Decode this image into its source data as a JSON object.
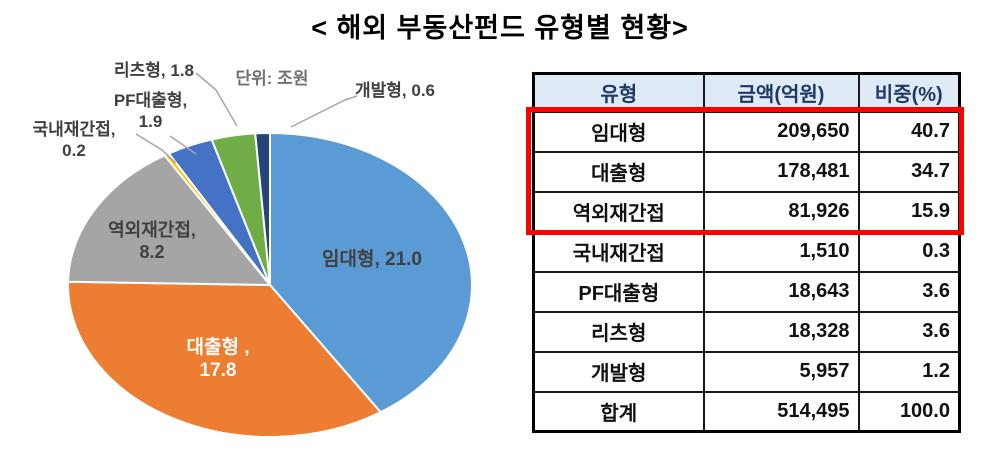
{
  "title": "< 해외 부동산펀드 유형별 현황>",
  "unit_note": "단위: 조원",
  "chart_data": {
    "type": "pie",
    "title": "해외 부동산펀드 유형별 현황",
    "unit": "조원",
    "legend_position": "none",
    "start_angle_deg": 0,
    "direction": "clockwise",
    "categories": [
      "임대형",
      "대출형",
      "역외재간접",
      "국내재간접",
      "PF대출형",
      "리츠형",
      "개발형"
    ],
    "values": [
      21.0,
      17.8,
      8.2,
      0.2,
      1.9,
      1.8,
      0.6
    ],
    "percents": [
      40.7,
      34.7,
      15.9,
      0.3,
      3.6,
      3.6,
      1.2
    ],
    "colors": [
      "#5B9BD5",
      "#ED7D31",
      "#A5A5A5",
      "#FFC000",
      "#4472C4",
      "#70AD47",
      "#264478"
    ],
    "total": 51.5
  },
  "pie_labels": {
    "rental": "임대형, 21.0",
    "loan_line1": "대출형 ,",
    "loan_line2": "17.8",
    "offshore_line1": "역외재간접,",
    "offshore_line2": "8.2",
    "domestic_line1": "국내재간접,",
    "domestic_line2": "0.2",
    "pf_line1": "PF대출형,",
    "pf_line2": "1.9",
    "reits": "리츠형, 1.8",
    "development": "개발형, 0.6"
  },
  "table": {
    "headers": [
      "유형",
      "금액(억원)",
      "비중(%)"
    ],
    "rows": [
      [
        "임대형",
        "209,650",
        "40.7"
      ],
      [
        "대출형",
        "178,481",
        "34.7"
      ],
      [
        "역외재간접",
        "81,926",
        "15.9"
      ],
      [
        "국내재간접",
        "1,510",
        "0.3"
      ],
      [
        "PF대출형",
        "18,643",
        "3.6"
      ],
      [
        "리츠형",
        "18,328",
        "3.6"
      ],
      [
        "개발형",
        "5,957",
        "1.2"
      ],
      [
        "합계",
        "514,495",
        "100.0"
      ]
    ],
    "highlighted_row_indices": [
      0,
      1,
      2
    ],
    "highlight_color": "#FF0000",
    "header_bg": "#DEEBF7"
  }
}
